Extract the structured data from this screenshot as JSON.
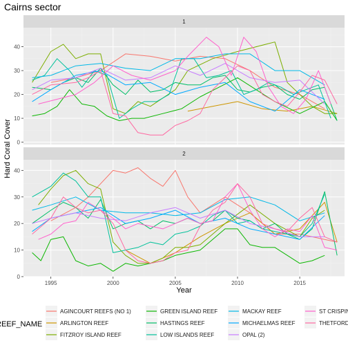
{
  "title": "Cairns sector",
  "colors": {
    "panel_bg": "#EBEBEB",
    "strip_bg": "#D9D9D9",
    "grid_major": "#FFFFFF",
    "grid_minor": "#F2F2F2"
  },
  "chart_data": {
    "type": "line",
    "title": "Cairns sector",
    "xlabel": "Year",
    "ylabel": "Hard Coral Cover",
    "xlim": [
      1992.8,
      2018.6
    ],
    "x_ticks": [
      1995,
      2000,
      2005,
      2010,
      2015
    ],
    "y_ticks": [
      0,
      10,
      20,
      30,
      40
    ],
    "legend": {
      "title": "REEF_NAME",
      "position": "bottom"
    },
    "grid": true,
    "facets": [
      {
        "label": "1",
        "ylim": [
          -1,
          48
        ],
        "series": [
          {
            "name": "AGINCOURT REEFS (NO 1)",
            "color": "#F8766D",
            "x": [
              1995,
              1997,
              1999,
              2001,
              2003,
              2005,
              2007,
              2009,
              2011,
              2013,
              2015,
              2017
            ],
            "y": [
              25,
              27,
              30,
              37,
              36,
              34,
              36,
              35,
              30,
              23,
              20,
              14
            ]
          },
          {
            "name": "ARLINGTON REEF",
            "color": "#CD9600",
            "x": [
              2006,
              2008,
              2010,
              2012,
              2014,
              2016,
              2018
            ],
            "y": [
              13,
              15,
              17,
              14,
              13,
              15,
              12
            ]
          },
          {
            "name": "FITZROY ISLAND REEF",
            "color": "#7CAE00",
            "x": [
              1993.5,
              1995,
              1996,
              1997,
              1998,
              1999,
              2000,
              2001,
              2002,
              2003,
              2005,
              2006,
              2008,
              2010,
              2013,
              2014,
              2016,
              2017,
              2018
            ],
            "y": [
              25,
              38,
              41,
              35,
              37,
              37,
              14,
              12,
              17,
              15,
              22,
              30,
              35,
              38,
              42,
              25,
              15,
              12,
              12
            ]
          },
          {
            "name": "GREEN ISLAND REEF",
            "color": "#0CB702",
            "x": [
              1993.5,
              1994.5,
              1995.5,
              1996.5,
              1997.5,
              1998.5,
              1999.5,
              2000.5,
              2001.5,
              2002.5,
              2004,
              2005.5,
              2007,
              2008.5,
              2010,
              2011.5,
              2013,
              2015,
              2017,
              2018
            ],
            "y": [
              11,
              12,
              15,
              22,
              16,
              15,
              11,
              9,
              10,
              10,
              12,
              14,
              19,
              23,
              27,
              22,
              17,
              12,
              17,
              9
            ]
          },
          {
            "name": "HASTINGS REEF",
            "color": "#00BE67",
            "x": [
              1993.5,
              1995,
              1996,
              1997,
              1998,
              1999,
              2000,
              2001,
              2002,
              2003,
              2004,
              2005,
              2006,
              2007,
              2008,
              2009,
              2010,
              2011,
              2012,
              2013,
              2014,
              2015,
              2016,
              2017,
              2018
            ],
            "y": [
              23,
              22,
              25,
              27,
              25,
              31,
              24,
              20,
              26,
              21,
              22,
              25,
              24,
              24,
              27,
              28,
              22,
              21,
              23,
              24,
              20,
              18,
              22,
              23,
              9
            ]
          },
          {
            "name": "LOW ISLANDS REEF",
            "color": "#00C19A",
            "x": [
              1993.5,
              1994.5,
              1995.5,
              1996.5,
              1997.5,
              1998.5,
              1999.5,
              2000.5,
              2001.5,
              2002.5,
              2003.5,
              2004.5,
              2005.5,
              2006.5,
              2007.5,
              2008.5,
              2009.5,
              2010.5,
              2011.5,
              2012.5,
              2013.5,
              2014.5,
              2015.5,
              2016.5,
              2017.5
            ],
            "y": [
              26,
              28,
              35,
              30,
              23,
              30,
              28,
              10,
              14,
              17,
              17,
              20,
              35,
              35,
              27,
              28,
              30,
              20,
              22,
              25,
              23,
              20,
              22,
              24,
              10
            ]
          },
          {
            "name": "MACKAY REEF",
            "color": "#00B8E7",
            "x": [
              1993.5,
              1995,
              1997,
              1999,
              2001,
              2003,
              2005,
              2007,
              2009,
              2011,
              2013,
              2015,
              2017
            ],
            "y": [
              27,
              28,
              32,
              33,
              31,
              30,
              35,
              35,
              37,
              37,
              30,
              30,
              24
            ]
          },
          {
            "name": "MICHAELMAS REEF",
            "color": "#00A9FF",
            "x": [
              1993.5,
              1995,
              1997,
              1999,
              2001,
              2003,
              2005,
              2007,
              2009,
              2011,
              2013,
              2015,
              2017
            ],
            "y": [
              17,
              22,
              28,
              30,
              24,
              25,
              20,
              23,
              25,
              17,
              13,
              22,
              18
            ]
          },
          {
            "name": "OPAL (2)",
            "color": "#C77CFF",
            "x": [
              1993.5,
              1995,
              1997,
              1999,
              2001,
              2003,
              2005,
              2007,
              2009,
              2011,
              2013,
              2015,
              2017
            ],
            "y": [
              22,
              26,
              27,
              31,
              26,
              27,
              32,
              28,
              33,
              27,
              25,
              26,
              16
            ]
          },
          {
            "name": "ST CRISPIN REEF",
            "color": "#FF61CC",
            "x": [
              1994,
              1995.5,
              1997,
              1998.5,
              2000,
              2001.5,
              2003,
              2005,
              2006,
              2007.5,
              2008.5,
              2009.5,
              2010.5,
              2011.5,
              2012.5,
              2013.5,
              2014.5,
              2015.5,
              2016.5,
              2017.5
            ],
            "y": [
              16,
              18,
              20,
              25,
              32,
              28,
              26,
              30,
              36,
              44,
              40,
              28,
              44,
              38,
              23,
              15,
              12,
              18,
              30,
              16
            ]
          },
          {
            "name": "THETFORD REEF",
            "color": "#FF68A1",
            "x": [
              1993.5,
              1995,
              1997,
              1998,
              1999,
              2000,
              2001,
              2002,
              2003,
              2004,
              2005,
              2006,
              2007,
              2008,
              2009,
              2010,
              2011,
              2012,
              2013,
              2014,
              2015,
              2016,
              2017,
              2018
            ],
            "y": [
              20,
              24,
              25,
              27,
              30,
              12,
              11,
              4,
              3,
              3,
              7,
              9,
              12,
              22,
              27,
              32,
              30,
              20,
              17,
              15,
              21,
              28,
              26,
              16
            ]
          }
        ]
      },
      {
        "label": "2",
        "ylim": [
          0,
          44
        ],
        "series": [
          {
            "name": "AGINCOURT REEFS (NO 1)",
            "color": "#F8766D",
            "x": [
              1995,
              1997,
              1998,
              2000,
              2001,
              2002,
              2003,
              2004,
              2005,
              2006,
              2007,
              2009,
              2011,
              2013,
              2015,
              2017,
              2018
            ],
            "y": [
              21,
              26,
              30,
              40,
              39,
              41,
              37,
              34,
              40,
              30,
              24,
              30,
              24,
              16,
              16,
              14,
              13
            ]
          },
          {
            "name": "ARLINGTON REEF",
            "color": "#CD9600",
            "x": [
              2001,
              2003,
              2005,
              2007,
              2009,
              2011,
              2013,
              2015,
              2017,
              2018
            ],
            "y": [
              10,
              5,
              9,
              15,
              20,
              24,
              16,
              18,
              28,
              13
            ]
          },
          {
            "name": "FITZROY ISLAND REEF",
            "color": "#7CAE00",
            "x": [
              1994,
              1995,
              1996,
              1997,
              1998,
              1999,
              2000,
              2001,
              2002,
              2003,
              2004,
              2005,
              2006,
              2007,
              2009,
              2011,
              2013,
              2015,
              2016,
              2017
            ],
            "y": [
              27,
              33,
              38,
              40,
              35,
              33,
              13,
              8,
              5,
              5,
              7,
              11,
              11,
              12,
              20,
              27,
              20,
              15,
              22,
              25
            ]
          },
          {
            "name": "GREEN ISLAND REEF",
            "color": "#0CB702",
            "x": [
              1993.5,
              1994.2,
              1995,
              1996,
              1997,
              1998,
              1999,
              2000,
              2001,
              2002,
              2003,
              2004,
              2005,
              2006,
              2007,
              2008,
              2009,
              2010,
              2011,
              2012,
              2013,
              2014,
              2015,
              2016,
              2017
            ],
            "y": [
              9,
              6,
              14,
              15,
              6,
              4,
              5,
              2,
              5,
              4,
              5,
              6,
              8,
              9,
              10,
              14,
              18,
              18,
              12,
              11,
              11,
              8,
              5,
              6,
              8
            ]
          },
          {
            "name": "HASTINGS REEF",
            "color": "#00BE67",
            "x": [
              1993.5,
              1995,
              1996,
              1997,
              1998,
              1999,
              2000,
              2001,
              2002,
              2003,
              2004,
              2005,
              2006,
              2007,
              2008,
              2009,
              2010,
              2011,
              2012,
              2013,
              2014,
              2015,
              2016,
              2017,
              2018
            ],
            "y": [
              20,
              25,
              28,
              26,
              22,
              29,
              18,
              20,
              21,
              18,
              21,
              20,
              22,
              20,
              21,
              25,
              22,
              21,
              18,
              20,
              16,
              14,
              18,
              32,
              8
            ]
          },
          {
            "name": "LOW ISLANDS REEF",
            "color": "#00C19A",
            "x": [
              1993.5,
              1995,
              1996,
              1997,
              1998,
              1999,
              2000,
              2001,
              2002,
              2003,
              2004,
              2005,
              2006,
              2007,
              2008,
              2009,
              2010,
              2011,
              2012,
              2013,
              2014,
              2015,
              2016,
              2017
            ],
            "y": [
              30,
              34,
              39,
              36,
              30,
              30,
              9,
              10,
              11,
              13,
              12,
              16,
              17,
              19,
              23,
              25,
              20,
              21,
              18,
              17,
              16,
              15,
              20,
              31
            ]
          },
          {
            "name": "MACKAY REEF",
            "color": "#00B8E7",
            "x": [
              1993.5,
              1995,
              1997,
              1999,
              2001,
              2003,
              2005,
              2007,
              2009,
              2011,
              2013,
              2015,
              2017
            ],
            "y": [
              25,
              27,
              30,
              25,
              24,
              24,
              23,
              24,
              29,
              30,
              27,
              21,
              24
            ]
          },
          {
            "name": "MICHAELMAS REEF",
            "color": "#00A9FF",
            "x": [
              1993.5,
              1995,
              1997,
              1999,
              2001,
              2003,
              2005,
              2007,
              2009,
              2011,
              2013,
              2015,
              2017
            ],
            "y": [
              17,
              22,
              24,
              26,
              20,
              22,
              25,
              20,
              22,
              18,
              16,
              14,
              23
            ]
          },
          {
            "name": "OPAL (2)",
            "color": "#C77CFF",
            "x": [
              1993.5,
              1995,
              1997,
              1999,
              2001,
              2003,
              2005,
              2007,
              2009,
              2011,
              2013,
              2015,
              2017
            ],
            "y": [
              20,
              22,
              24,
              22,
              21,
              24,
              26,
              22,
              25,
              20,
              18,
              15,
              15
            ]
          },
          {
            "name": "ST CRISPIN REEF",
            "color": "#FF61CC",
            "x": [
              1994,
              1995,
              1996,
              1997,
              1998,
              1999,
              2000,
              2001,
              2002,
              2003,
              2004,
              2005,
              2006,
              2007,
              2008,
              2009,
              2010,
              2011,
              2012,
              2013,
              2014,
              2015,
              2016,
              2017,
              2018
            ],
            "y": [
              14,
              16,
              20,
              21,
              28,
              25,
              22,
              18,
              20,
              19,
              18,
              20,
              22,
              20,
              21,
              30,
              35,
              25,
              18,
              15,
              18,
              17,
              23,
              11,
              10
            ]
          },
          {
            "name": "THETFORD REEF",
            "color": "#FF68A1",
            "x": [
              1993.5,
              1995,
              1996,
              1997,
              1998,
              1999,
              2000,
              2001,
              2002,
              2003,
              2004,
              2005,
              2006,
              2007,
              2008,
              2009,
              2010,
              2011,
              2012,
              2013,
              2014,
              2015,
              2016,
              2017,
              2018
            ],
            "y": [
              16,
              22,
              30,
              26,
              24,
              25,
              20,
              10,
              6,
              5,
              6,
              9,
              10,
              19,
              25,
              28,
              35,
              30,
              20,
              18,
              17,
              22,
              26,
              15,
              13
            ]
          }
        ]
      }
    ]
  }
}
